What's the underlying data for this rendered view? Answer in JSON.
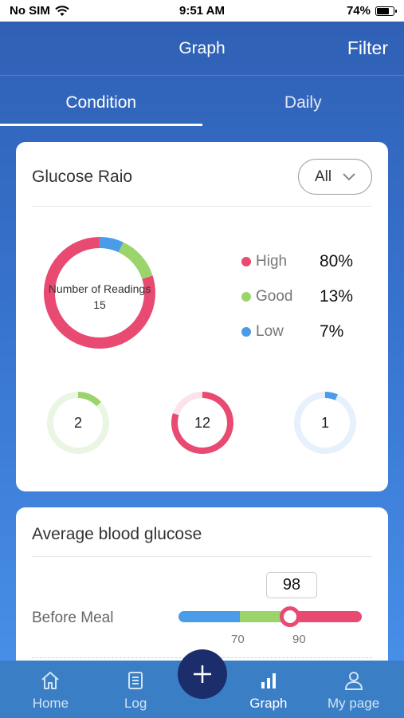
{
  "status_bar": {
    "carrier": "No SIM",
    "time": "9:51 AM",
    "battery": "74%",
    "battery_level": 0.74
  },
  "header": {
    "title": "Graph",
    "filter_label": "Filter"
  },
  "tabs": [
    {
      "label": "Condition",
      "active": true
    },
    {
      "label": "Daily",
      "active": false
    }
  ],
  "glucose_ratio": {
    "title": "Glucose Raio",
    "dropdown_value": "All",
    "total_label": "Number of Readings",
    "total_value": "15",
    "legend": [
      {
        "label": "High",
        "percent": "80%",
        "color": "#e94a72"
      },
      {
        "label": "Good",
        "percent": "13%",
        "color": "#9bd46b"
      },
      {
        "label": "Low",
        "percent": "7%",
        "color": "#4a9be8"
      }
    ],
    "small_donuts": [
      {
        "value": "2",
        "fraction": 0.133,
        "color": "#9bd46b",
        "track": "#eaf6e3"
      },
      {
        "value": "12",
        "fraction": 0.8,
        "color": "#e94a72",
        "track": "#fbe3e9"
      },
      {
        "value": "1",
        "fraction": 0.067,
        "color": "#4a9be8",
        "track": "#e6f1fc"
      }
    ]
  },
  "chart_data": {
    "type": "pie",
    "categories": [
      "High",
      "Good",
      "Low"
    ],
    "values": [
      80,
      13,
      7
    ],
    "title": ""
  },
  "average_glucose": {
    "title": "Average blood glucose",
    "rows": [
      {
        "label": "Before Meal",
        "value": "98",
        "low_threshold": "70",
        "high_threshold": "90"
      }
    ]
  },
  "tab_bar": {
    "items": [
      {
        "label": "Home",
        "icon": "home-icon",
        "active": false
      },
      {
        "label": "Log",
        "icon": "log-icon",
        "active": false
      },
      {
        "label": "Graph",
        "icon": "graph-icon",
        "active": true
      },
      {
        "label": "My page",
        "icon": "user-icon",
        "active": false
      }
    ],
    "fab_icon": "plus-icon"
  }
}
